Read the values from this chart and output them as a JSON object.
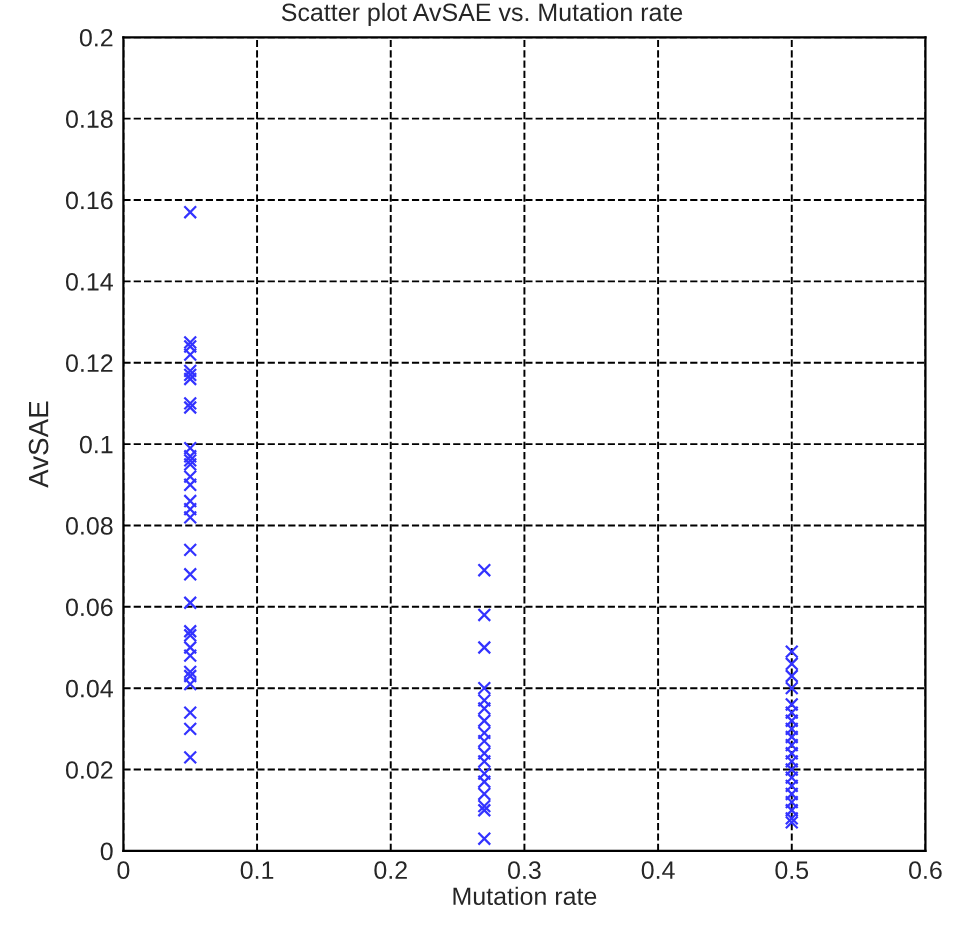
{
  "chart_data": {
    "type": "scatter",
    "title": "Scatter plot AvSAE vs. Mutation rate",
    "xlabel": "Mutation rate",
    "ylabel": "AvSAE",
    "series": [
      {
        "color": "#3333ff",
        "x": [
          0.05,
          0.05,
          0.05,
          0.05,
          0.05,
          0.05,
          0.05,
          0.05,
          0.05,
          0.05,
          0.05,
          0.05,
          0.05,
          0.05,
          0.05,
          0.05,
          0.05,
          0.05,
          0.05,
          0.05,
          0.05,
          0.05,
          0.05,
          0.05,
          0.05,
          0.05,
          0.05,
          0.05,
          0.05,
          0.05,
          0.05
        ],
        "values": [
          0.157,
          0.125,
          0.124,
          0.122,
          0.118,
          0.117,
          0.116,
          0.11,
          0.109,
          0.099,
          0.097,
          0.095,
          0.092,
          0.09,
          0.086,
          0.084,
          0.082,
          0.074,
          0.068,
          0.061,
          0.054,
          0.053,
          0.05,
          0.048,
          0.044,
          0.043,
          0.041,
          0.034,
          0.03,
          0.023,
          0.096
        ]
      },
      {
        "color": "#3333ff",
        "x": [
          0.27,
          0.27,
          0.27,
          0.27,
          0.27,
          0.27,
          0.27,
          0.27,
          0.27,
          0.27,
          0.27,
          0.27,
          0.27,
          0.27,
          0.27,
          0.27,
          0.27
        ],
        "values": [
          0.069,
          0.058,
          0.05,
          0.04,
          0.037,
          0.035,
          0.032,
          0.029,
          0.027,
          0.024,
          0.022,
          0.019,
          0.017,
          0.014,
          0.011,
          0.01,
          0.003
        ]
      },
      {
        "color": "#3333ff",
        "x": [
          0.5,
          0.5,
          0.5,
          0.5,
          0.5,
          0.5,
          0.5,
          0.5,
          0.5,
          0.5,
          0.5,
          0.5,
          0.5,
          0.5,
          0.5,
          0.5,
          0.5,
          0.5,
          0.5,
          0.5
        ],
        "values": [
          0.049,
          0.046,
          0.043,
          0.04,
          0.036,
          0.034,
          0.032,
          0.03,
          0.028,
          0.026,
          0.024,
          0.022,
          0.02,
          0.018,
          0.016,
          0.014,
          0.012,
          0.01,
          0.008,
          0.007
        ]
      }
    ],
    "marker": "cross",
    "grid": true,
    "line_style": "dashed",
    "xlim": [
      0,
      0.6
    ],
    "xticks": [
      0,
      0.1,
      0.2,
      0.3,
      0.4,
      0.5,
      0.6
    ],
    "ylim": [
      0,
      0.2
    ],
    "yticks": [
      0,
      0.02,
      0.04,
      0.06,
      0.08,
      0.1,
      0.12,
      0.14,
      0.16,
      0.18,
      0.2
    ]
  }
}
